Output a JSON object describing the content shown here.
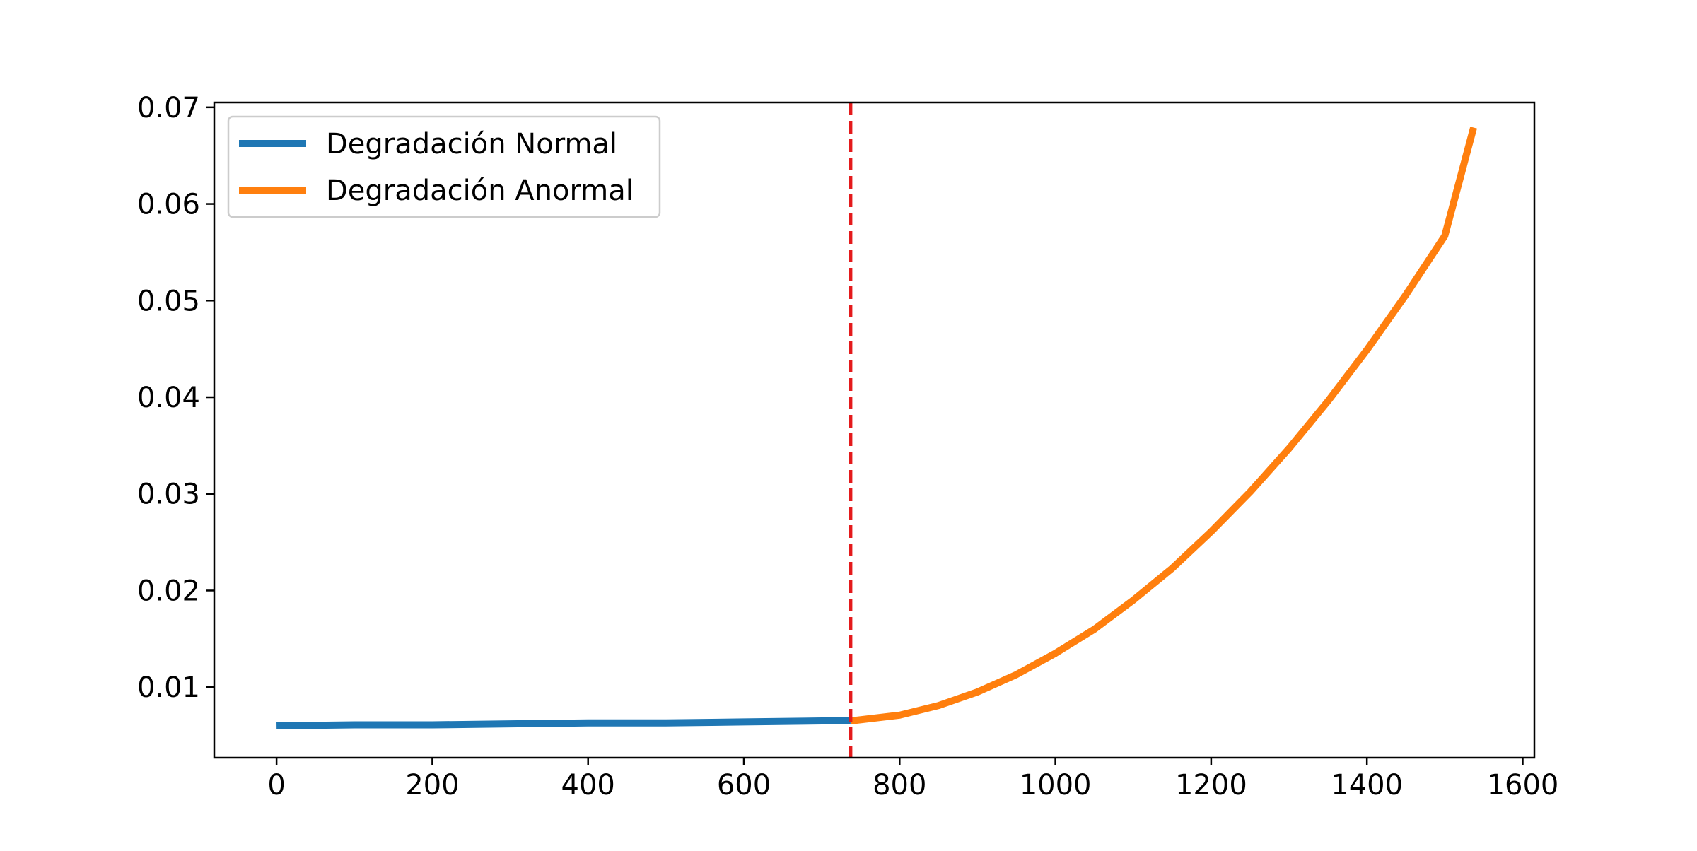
{
  "chart_data": {
    "type": "line",
    "title": "",
    "xlabel": "",
    "ylabel": "",
    "xlim": [
      -80,
      1615
    ],
    "ylim": [
      0.0027,
      0.0705
    ],
    "xticks": [
      0,
      200,
      400,
      600,
      800,
      1000,
      1200,
      1400,
      1600
    ],
    "yticks": [
      0.01,
      0.02,
      0.03,
      0.04,
      0.05,
      0.06,
      0.07
    ],
    "xtick_labels": [
      "0",
      "200",
      "400",
      "600",
      "800",
      "1000",
      "1200",
      "1400",
      "1600"
    ],
    "ytick_labels": [
      "0.01",
      "0.02",
      "0.03",
      "0.04",
      "0.05",
      "0.06",
      "0.07"
    ],
    "grid": false,
    "legend": {
      "position": "top-left",
      "entries": [
        "Degradación Normal",
        "Degradación Anormal"
      ]
    },
    "changepoint": {
      "x": 737,
      "color": "#e41a1c",
      "style": "dashed"
    },
    "series": [
      {
        "name": "Degradación Normal",
        "color": "#1f77b4",
        "x": [
          0,
          100,
          200,
          300,
          400,
          500,
          600,
          700,
          737
        ],
        "y": [
          0.006,
          0.0061,
          0.0061,
          0.0062,
          0.0063,
          0.0063,
          0.0064,
          0.0065,
          0.0065
        ]
      },
      {
        "name": "Degradación Anormal",
        "color": "#ff7f0e",
        "x": [
          737,
          800,
          850,
          900,
          950,
          1000,
          1050,
          1100,
          1150,
          1200,
          1250,
          1300,
          1350,
          1400,
          1450,
          1500,
          1537
        ],
        "y": [
          0.0065,
          0.0071,
          0.0081,
          0.0095,
          0.0113,
          0.0135,
          0.016,
          0.019,
          0.0223,
          0.0261,
          0.0302,
          0.0347,
          0.0396,
          0.0449,
          0.0506,
          0.0567,
          0.0679
        ]
      }
    ]
  }
}
